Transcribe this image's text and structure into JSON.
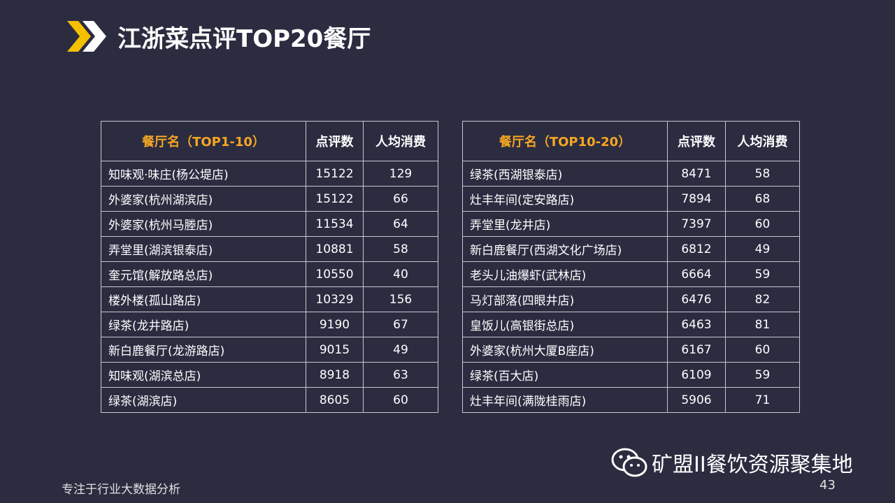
{
  "title": "江浙菜点评TOP20餐厅",
  "tables": [
    {
      "header": [
        "餐厅名（TOP1-10）",
        "点评数",
        "人均消费"
      ],
      "rows": [
        [
          "知味观·味庄(杨公堤店)",
          15122,
          129
        ],
        [
          "外婆家(杭州湖滨店)",
          15122,
          66
        ],
        [
          "外婆家(杭州马塍店)",
          11534,
          64
        ],
        [
          "弄堂里(湖滨银泰店)",
          10881,
          58
        ],
        [
          "奎元馆(解放路总店)",
          10550,
          40
        ],
        [
          "楼外楼(孤山路店)",
          10329,
          156
        ],
        [
          "绿茶(龙井路店)",
          9190,
          67
        ],
        [
          "新白鹿餐厅(龙游路店)",
          9015,
          49
        ],
        [
          "知味观(湖滨总店)",
          8918,
          63
        ],
        [
          "绿茶(湖滨店)",
          8605,
          60
        ]
      ]
    },
    {
      "header": [
        "餐厅名（TOP10-20）",
        "点评数",
        "人均消费"
      ],
      "rows": [
        [
          "绿茶(西湖银泰店)",
          8471,
          58
        ],
        [
          "灶丰年间(定安路店)",
          7894,
          68
        ],
        [
          "弄堂里(龙井店)",
          7397,
          60
        ],
        [
          "新白鹿餐厅(西湖文化广场店)",
          6812,
          49
        ],
        [
          "老头儿油爆虾(武林店)",
          6664,
          59
        ],
        [
          "马灯部落(四眼井店)",
          6476,
          82
        ],
        [
          "皇饭儿(高银街总店)",
          6463,
          81
        ],
        [
          "外婆家(杭州大厦B座店)",
          6167,
          60
        ],
        [
          "绿茶(百大店)",
          6109,
          59
        ],
        [
          "灶丰年间(满陇桂雨店)",
          5906,
          71
        ]
      ]
    }
  ],
  "footer": "专注于行业大数据分析",
  "watermark": "矿盟II餐饮资源聚集地",
  "page_number": "43"
}
